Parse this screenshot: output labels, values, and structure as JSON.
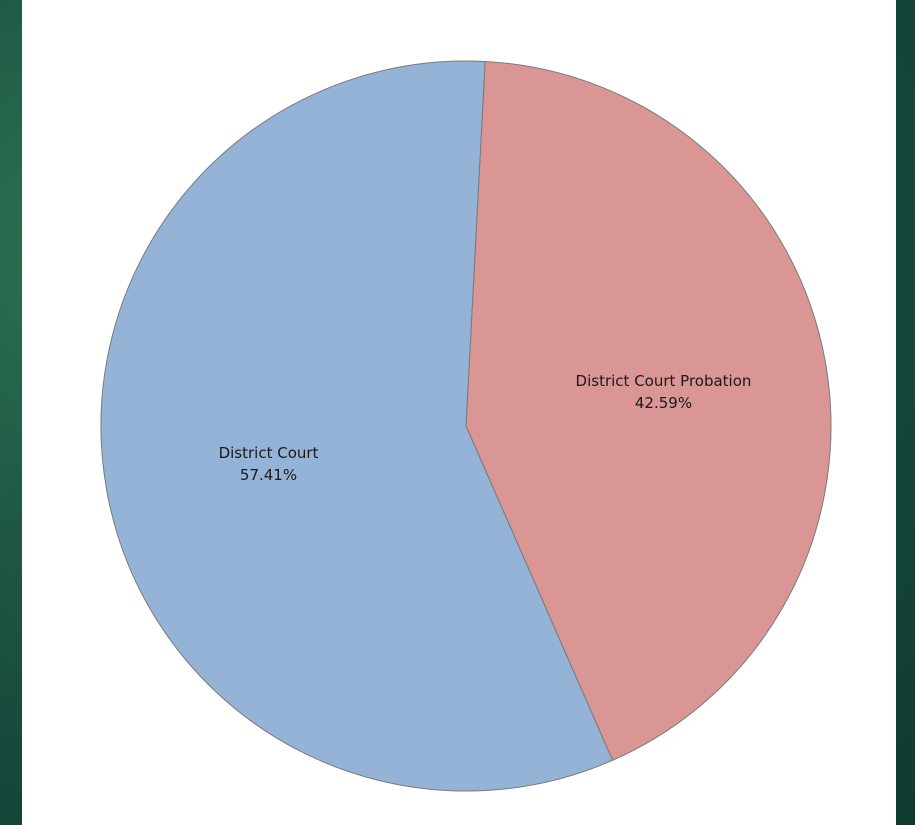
{
  "chart_data": {
    "type": "pie",
    "slices": [
      {
        "label": "District Court Probation",
        "percent_label": "42.59%",
        "value": 42.59,
        "color": "#d99694"
      },
      {
        "label": "District Court",
        "percent_label": "57.41%",
        "value": 57.41,
        "color": "#95b3d7"
      }
    ],
    "start_angle_deg": 3,
    "direction": "clockwise",
    "legend": "none",
    "labels": "inside"
  }
}
